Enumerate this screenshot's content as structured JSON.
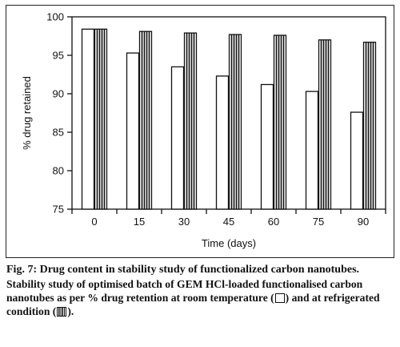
{
  "chart_data": {
    "type": "bar",
    "categories": [
      "0",
      "15",
      "30",
      "45",
      "60",
      "75",
      "90"
    ],
    "series": [
      {
        "name": "room temperature",
        "style": "hollow",
        "values": [
          98.4,
          95.3,
          93.5,
          92.3,
          91.2,
          90.3,
          87.6
        ]
      },
      {
        "name": "refrigerated condition",
        "style": "vertical-striped",
        "values": [
          98.4,
          98.1,
          97.9,
          97.7,
          97.6,
          97.0,
          96.7
        ]
      }
    ],
    "xlabel": "Time (days)",
    "ylabel": "% drug retained",
    "ylim": [
      75,
      100
    ],
    "yticks": [
      "75",
      "80",
      "85",
      "90",
      "95",
      "100"
    ],
    "grid": false,
    "legend": "in caption"
  },
  "caption": {
    "title": "Fig. 7: Drug content in stability study of functionalized carbon nanotubes.",
    "body_prefix": "Stability study of optimised batch of GEM HCl-loaded functionalised carbon nanotubes as per % drug retention at room temperature (",
    "body_middle": ") and at refrigerated condition (",
    "body_suffix": ")."
  },
  "colors": {
    "ink": "#111111",
    "bar_fill": "#ffffff",
    "background": "#ffffff"
  }
}
